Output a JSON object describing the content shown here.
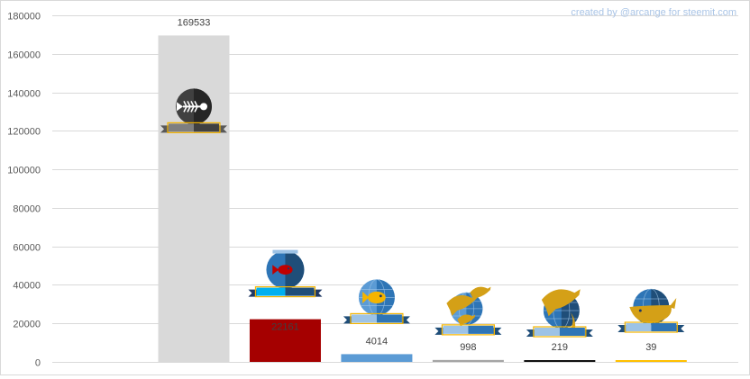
{
  "credit": "created by @arcange for steemit.com",
  "chart_data": {
    "type": "bar",
    "categories": [
      "",
      "",
      "",
      "",
      "",
      ""
    ],
    "values": [
      169533,
      22161,
      4014,
      998,
      219,
      39
    ],
    "value_labels": [
      "169533",
      "22161",
      "4014",
      "998",
      "219",
      "39"
    ],
    "colors": [
      "#d9d9d9",
      "#a50000",
      "#5b9bd5",
      "#a5a5a5",
      "#111111",
      "#ffc000"
    ],
    "badge_icons": [
      "fish-skeleton-badge-icon",
      "fishbowl-badge-icon",
      "fish-badge-icon",
      "dolphin-badge-icon",
      "orca-badge-icon",
      "whale-badge-icon"
    ],
    "ylim": [
      0,
      180000
    ],
    "yticks": [
      0,
      20000,
      40000,
      60000,
      80000,
      100000,
      120000,
      140000,
      160000,
      180000
    ],
    "ytick_labels": [
      "0",
      "20000",
      "40000",
      "60000",
      "80000",
      "100000",
      "120000",
      "140000",
      "160000",
      "180000"
    ],
    "grid": true,
    "title": "",
    "xlabel": "",
    "ylabel": ""
  }
}
